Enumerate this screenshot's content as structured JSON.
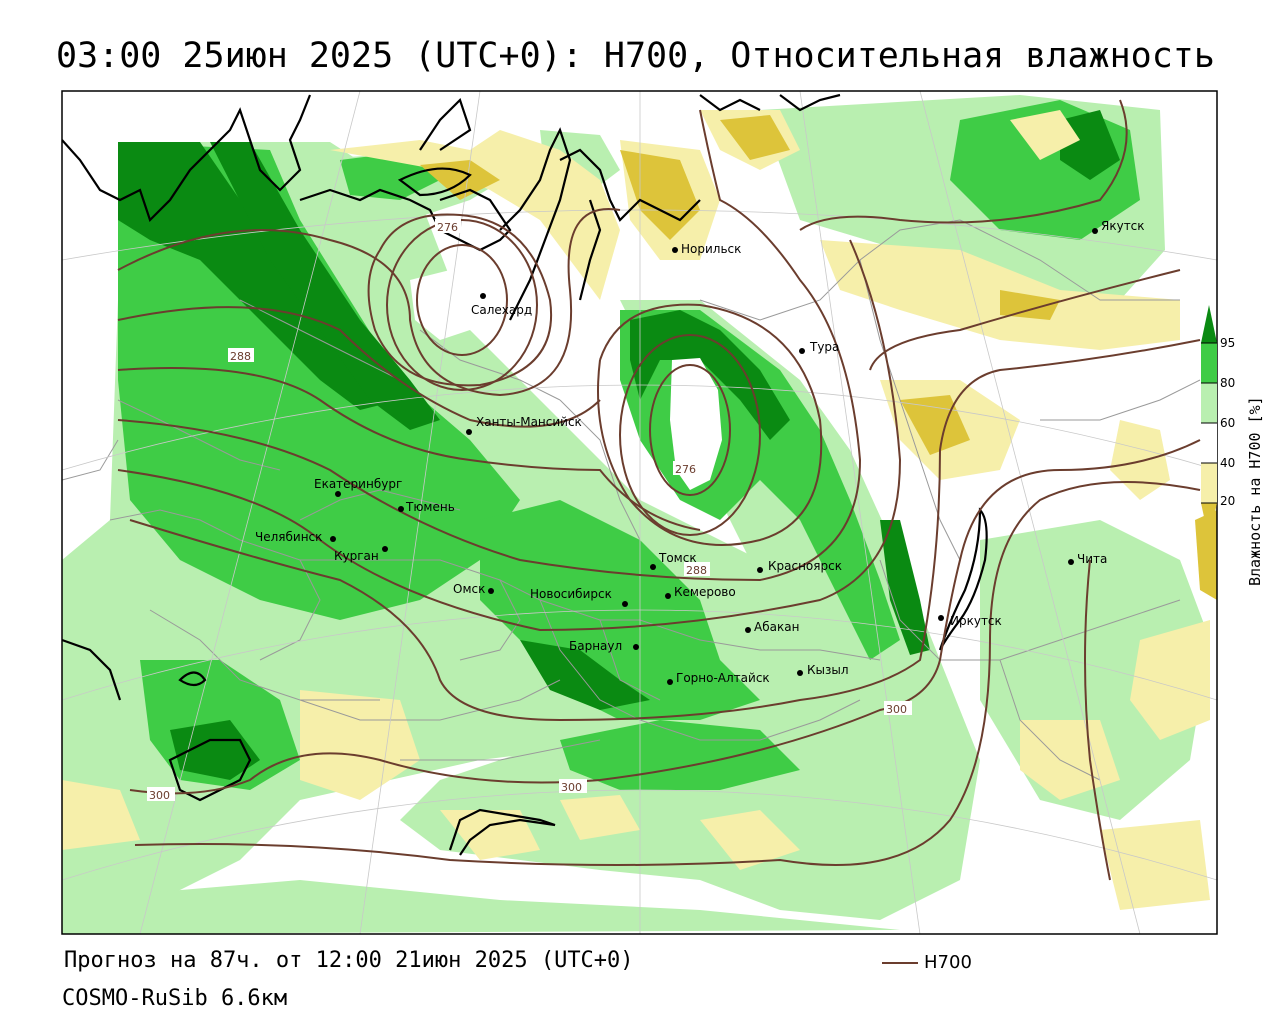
{
  "title": "03:00 25июн 2025 (UTC+0): H700, Относительная влажность",
  "footer": {
    "forecast": "Прогноз на 87ч. от 12:00 21июн 2025 (UTC+0)",
    "model": "COSMO-RuSib 6.6км",
    "contour_legend": "H700"
  },
  "colorbar": {
    "title": "Влажность на H700 [%]",
    "ticks": [
      "95",
      "80",
      "60",
      "40",
      "20"
    ],
    "colors": {
      "c95": "#0a8a12",
      "c80": "#3fcc46",
      "c60": "#b9efb0",
      "c40": "#ffffff",
      "c20": "#f6efaa",
      "c10": "#ddc43a"
    }
  },
  "colors": {
    "contour": "#6b3d2e",
    "coast": "#000000",
    "border": "#9a9a9a"
  },
  "cities": [
    {
      "name": "Якутск"
    },
    {
      "name": "Норильск"
    },
    {
      "name": "Салехард"
    },
    {
      "name": "Тура"
    },
    {
      "name": "Ханты-Мансийск"
    },
    {
      "name": "Екатеринбург"
    },
    {
      "name": "Тюмень"
    },
    {
      "name": "Челябинск"
    },
    {
      "name": "Курган"
    },
    {
      "name": "Омск"
    },
    {
      "name": "Новосибирск"
    },
    {
      "name": "Томск"
    },
    {
      "name": "Красноярск"
    },
    {
      "name": "Кемерово"
    },
    {
      "name": "Абакан"
    },
    {
      "name": "Барнаул"
    },
    {
      "name": "Горно-Алтайск"
    },
    {
      "name": "Кызыл"
    },
    {
      "name": "Иркутск"
    },
    {
      "name": "Чита"
    }
  ],
  "contour_labels": [
    "276",
    "288",
    "276",
    "288",
    "300",
    "300",
    "300"
  ]
}
